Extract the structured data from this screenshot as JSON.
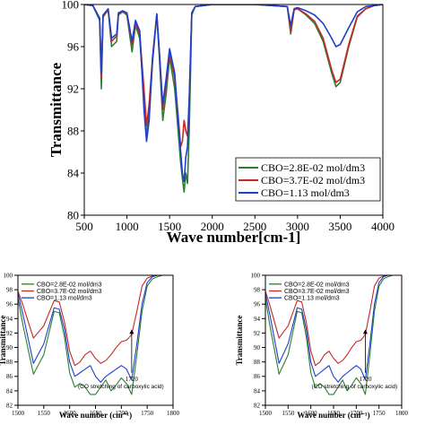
{
  "chart_data": [
    {
      "type": "line",
      "title": "",
      "xlabel": "Wave number[cm-1]",
      "ylabel": "Transmittance",
      "xlim": [
        500,
        4000
      ],
      "ylim": [
        80,
        100
      ],
      "x_ticks": [
        "500",
        "1000",
        "1500",
        "2000",
        "2500",
        "3000",
        "3500",
        "4000"
      ],
      "y_ticks": [
        "80",
        "84",
        "88",
        "92",
        "96",
        "100"
      ],
      "grid": false,
      "legend_position": "bottom-right",
      "series": [
        {
          "name": "CBO=2.8E-02 mol/dm3",
          "color": "#2e7d32",
          "x": [
            500,
            600,
            680,
            700,
            720,
            780,
            820,
            880,
            900,
            950,
            1000,
            1060,
            1100,
            1150,
            1200,
            1230,
            1260,
            1300,
            1350,
            1380,
            1420,
            1460,
            1500,
            1560,
            1600,
            1630,
            1650,
            1670,
            1690,
            1710,
            1730,
            1760,
            1800,
            2000,
            2500,
            2880,
            2920,
            2960,
            3000,
            3100,
            3200,
            3300,
            3400,
            3450,
            3500,
            3600,
            3700,
            3800,
            3900,
            4000
          ],
          "y": [
            100,
            99.9,
            98.5,
            92.0,
            98.8,
            99.5,
            96.0,
            96.5,
            99.0,
            99.3,
            99.0,
            95.5,
            98.0,
            96.8,
            91.0,
            87.5,
            89.5,
            94.5,
            99.0,
            95.0,
            89.0,
            91.5,
            95.0,
            92.0,
            88.0,
            85.0,
            83.5,
            82.2,
            84.0,
            83.0,
            88.0,
            99.0,
            99.8,
            100,
            100,
            99.8,
            97.2,
            99.5,
            99.6,
            99.0,
            98.2,
            96.5,
            93.5,
            92.2,
            92.6,
            96.0,
            98.8,
            99.6,
            99.9,
            100
          ]
        },
        {
          "name": "CBO=3.7E-02 mol/dm3",
          "color": "#c62828",
          "x": [
            500,
            600,
            680,
            700,
            720,
            780,
            820,
            880,
            900,
            950,
            1000,
            1060,
            1100,
            1150,
            1200,
            1230,
            1260,
            1300,
            1350,
            1380,
            1420,
            1460,
            1500,
            1560,
            1600,
            1630,
            1650,
            1670,
            1690,
            1710,
            1730,
            1760,
            1800,
            2000,
            2500,
            2880,
            2920,
            2960,
            3000,
            3100,
            3200,
            3300,
            3400,
            3450,
            3500,
            3600,
            3700,
            3800,
            3900,
            4000
          ],
          "y": [
            100,
            99.9,
            98.7,
            93.0,
            98.9,
            99.5,
            96.5,
            97.0,
            99.1,
            99.4,
            99.1,
            96.2,
            98.3,
            97.2,
            92.0,
            88.5,
            90.5,
            95.0,
            99.1,
            95.5,
            90.0,
            92.5,
            95.5,
            93.0,
            89.5,
            86.5,
            87.0,
            89.0,
            88.0,
            87.5,
            91.0,
            99.2,
            99.8,
            100,
            100,
            99.8,
            97.5,
            99.5,
            99.6,
            99.1,
            98.4,
            96.8,
            93.8,
            92.6,
            92.9,
            96.2,
            98.9,
            99.6,
            99.9,
            100
          ]
        },
        {
          "name": "CBO=1.13 mol/dm3",
          "color": "#1e3fcc",
          "x": [
            500,
            600,
            680,
            700,
            720,
            780,
            820,
            880,
            900,
            950,
            1000,
            1060,
            1100,
            1150,
            1200,
            1230,
            1260,
            1300,
            1350,
            1380,
            1420,
            1460,
            1500,
            1560,
            1600,
            1630,
            1650,
            1670,
            1690,
            1710,
            1730,
            1760,
            1800,
            2000,
            2500,
            2880,
            2920,
            2960,
            3000,
            3100,
            3200,
            3300,
            3400,
            3450,
            3500,
            3600,
            3700,
            3800,
            3900,
            4000
          ],
          "y": [
            100,
            99.9,
            98.7,
            93.5,
            99.0,
            99.6,
            96.8,
            97.2,
            99.2,
            99.4,
            99.2,
            96.5,
            98.5,
            97.5,
            90.0,
            87.0,
            89.0,
            94.8,
            99.1,
            95.5,
            90.5,
            93.0,
            95.8,
            93.5,
            89.0,
            86.0,
            84.0,
            83.2,
            85.5,
            86.5,
            91.0,
            99.2,
            99.8,
            100,
            100,
            99.8,
            98.0,
            99.6,
            99.7,
            99.4,
            99.0,
            98.2,
            96.8,
            96.0,
            96.2,
            97.8,
            99.3,
            99.8,
            99.9,
            100
          ]
        }
      ]
    },
    {
      "type": "line",
      "title": "",
      "xlabel": "Wave number (cm⁻¹)",
      "ylabel": "Transmittance",
      "xlim": [
        1500,
        1800
      ],
      "ylim": [
        82,
        100
      ],
      "x_ticks": [
        "1500",
        "1550",
        "1600",
        "1650",
        "1700",
        "1750",
        "1800"
      ],
      "y_ticks": [
        "82",
        "84",
        "86",
        "88",
        "90",
        "92",
        "94",
        "96",
        "98",
        "100"
      ],
      "grid": false,
      "legend_position": "top-left",
      "annotation_value": "1720",
      "annotation_text": "(CO stretching of carboxylic acid)",
      "annotation_x": 1720,
      "annotation_y": [
        86.5,
        92.5
      ],
      "series": [
        {
          "name": "CBO=2.8E-02 mol/dm3",
          "color": "#2e7d32",
          "x": [
            1500,
            1510,
            1530,
            1550,
            1570,
            1580,
            1590,
            1600,
            1610,
            1620,
            1630,
            1640,
            1650,
            1660,
            1670,
            1680,
            1690,
            1700,
            1710,
            1720,
            1730,
            1740,
            1750,
            1760,
            1770,
            1780,
            1800
          ],
          "y": [
            96.8,
            93.0,
            86.3,
            89.0,
            95.0,
            94.8,
            91.5,
            86.5,
            84.5,
            85.0,
            84.5,
            83.5,
            83.5,
            84.5,
            85.5,
            84.0,
            84.8,
            85.8,
            85.0,
            83.5,
            89.0,
            95.0,
            98.5,
            99.5,
            99.8,
            100,
            100
          ]
        },
        {
          "name": "CBO=3.7E-02 mol/dm3",
          "color": "#c62828",
          "x": [
            1500,
            1510,
            1530,
            1550,
            1570,
            1580,
            1590,
            1600,
            1610,
            1620,
            1630,
            1640,
            1650,
            1660,
            1670,
            1680,
            1690,
            1700,
            1710,
            1720,
            1730,
            1740,
            1750,
            1760,
            1770,
            1780,
            1800
          ],
          "y": [
            97.8,
            95.8,
            91.3,
            93.0,
            96.5,
            96.3,
            93.5,
            89.5,
            87.5,
            88.0,
            89.0,
            89.5,
            88.5,
            87.8,
            88.2,
            89.0,
            90.0,
            90.8,
            91.0,
            91.8,
            95.0,
            98.5,
            99.6,
            99.9,
            100,
            100,
            100
          ]
        },
        {
          "name": "CBO=1.13 mol/dm3",
          "color": "#1e3fcc",
          "x": [
            1500,
            1510,
            1530,
            1550,
            1570,
            1580,
            1590,
            1600,
            1610,
            1620,
            1630,
            1640,
            1650,
            1660,
            1670,
            1680,
            1690,
            1700,
            1710,
            1720,
            1730,
            1740,
            1750,
            1760,
            1770,
            1780,
            1800
          ],
          "y": [
            97.5,
            94.5,
            87.8,
            90.5,
            95.5,
            95.3,
            92.5,
            88.0,
            86.0,
            86.5,
            87.0,
            87.5,
            86.0,
            85.2,
            86.0,
            86.5,
            87.0,
            87.5,
            87.0,
            85.5,
            90.5,
            96.0,
            99.0,
            99.8,
            100,
            100,
            100
          ]
        }
      ]
    },
    {
      "type": "line",
      "title": "",
      "xlabel": "Wave number (cm⁻¹)",
      "ylabel": "Transmittance",
      "xlim": [
        1500,
        1800
      ],
      "ylim": [
        82,
        100
      ],
      "x_ticks": [
        "1500",
        "1550",
        "1600",
        "1650",
        "1700",
        "1750",
        "1800"
      ],
      "y_ticks": [
        "82",
        "84",
        "86",
        "88",
        "90",
        "92",
        "94",
        "96",
        "98",
        "100"
      ],
      "grid": false,
      "legend_position": "top-left",
      "annotation_value": "1720",
      "annotation_text": "(CO stretching of carboxylic acid)",
      "annotation_x": 1720,
      "annotation_y": [
        86.5,
        92.5
      ],
      "series": [
        {
          "name": "CBO=2.8E-02 mol/dm3",
          "color": "#2e7d32",
          "x": [
            1500,
            1510,
            1530,
            1550,
            1570,
            1580,
            1590,
            1600,
            1610,
            1620,
            1630,
            1640,
            1650,
            1660,
            1670,
            1680,
            1690,
            1700,
            1710,
            1720,
            1730,
            1740,
            1750,
            1760,
            1770,
            1780,
            1800
          ],
          "y": [
            96.8,
            93.0,
            86.3,
            89.0,
            95.0,
            94.8,
            91.5,
            86.5,
            84.5,
            85.0,
            84.5,
            83.5,
            83.5,
            84.5,
            85.5,
            84.0,
            84.8,
            85.8,
            85.0,
            83.5,
            89.0,
            95.0,
            98.5,
            99.5,
            99.8,
            100,
            100
          ]
        },
        {
          "name": "CBO=3.7E-02 mol/dm3",
          "color": "#c62828",
          "x": [
            1500,
            1510,
            1530,
            1550,
            1570,
            1580,
            1590,
            1600,
            1610,
            1620,
            1630,
            1640,
            1650,
            1660,
            1670,
            1680,
            1690,
            1700,
            1710,
            1720,
            1730,
            1740,
            1750,
            1760,
            1770,
            1780,
            1800
          ],
          "y": [
            97.8,
            95.8,
            91.3,
            93.0,
            96.5,
            96.3,
            93.5,
            89.5,
            87.5,
            88.0,
            89.0,
            89.5,
            88.5,
            87.8,
            88.2,
            89.0,
            90.0,
            90.8,
            91.0,
            91.8,
            95.0,
            98.5,
            99.6,
            99.9,
            100,
            100,
            100
          ]
        },
        {
          "name": "CBO=1.13 mol/dm3",
          "color": "#1e3fcc",
          "x": [
            1500,
            1510,
            1530,
            1550,
            1570,
            1580,
            1590,
            1600,
            1610,
            1620,
            1630,
            1640,
            1650,
            1660,
            1670,
            1680,
            1690,
            1700,
            1710,
            1720,
            1730,
            1740,
            1750,
            1760,
            1770,
            1780,
            1800
          ],
          "y": [
            97.5,
            94.5,
            87.8,
            90.5,
            95.5,
            95.3,
            92.5,
            88.0,
            86.0,
            86.5,
            87.0,
            87.5,
            86.0,
            85.2,
            86.0,
            86.5,
            87.0,
            87.5,
            87.0,
            85.5,
            90.5,
            96.0,
            99.0,
            99.8,
            100,
            100,
            100
          ]
        }
      ]
    }
  ]
}
